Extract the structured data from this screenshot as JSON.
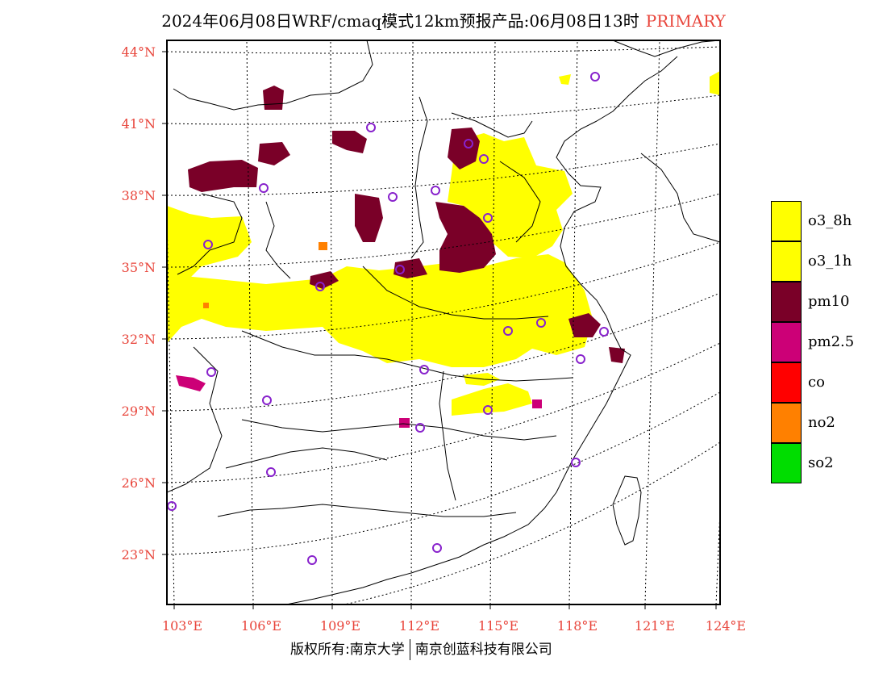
{
  "title": {
    "main": "2024年06月08日WRF/cmaq模式12km预报产品:06月08日13时",
    "pollutant": "PRIMARY"
  },
  "colors": {
    "accent": "#e8443a",
    "o3_8h": "#ffff00",
    "o3_1h": "#ffff00",
    "pm10": "#7a0028",
    "pm25": "#cc0077",
    "co": "#ff0000",
    "no2": "#ff8000",
    "so2": "#00dd00",
    "station": "#8822cc"
  },
  "axes": {
    "lat_labels": [
      "44°N",
      "41°N",
      "38°N",
      "35°N",
      "32°N",
      "29°N",
      "26°N",
      "23°N"
    ],
    "lon_labels": [
      "103°E",
      "106°E",
      "109°E",
      "112°E",
      "115°E",
      "118°E",
      "121°E",
      "124°E"
    ]
  },
  "legend": [
    {
      "label": "o3_8h",
      "color": "#ffff00"
    },
    {
      "label": "o3_1h",
      "color": "#ffff00"
    },
    {
      "label": "pm10",
      "color": "#7a0028"
    },
    {
      "label": "pm2.5",
      "color": "#cc0077"
    },
    {
      "label": "co",
      "color": "#ff0000"
    },
    {
      "label": "no2",
      "color": "#ff8000"
    },
    {
      "label": "so2",
      "color": "#00dd00"
    }
  ],
  "footer": {
    "left": "版权所有:南京大学",
    "right": "南京创蓝科技有限公司"
  }
}
